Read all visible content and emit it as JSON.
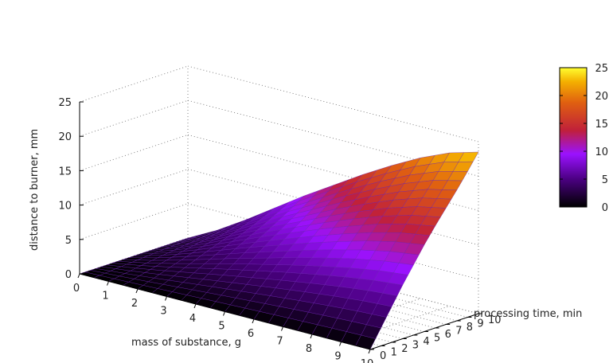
{
  "chart_data": {
    "type": "surface3d",
    "xlabel": "mass of substance, g",
    "ylabel": "processing time, min",
    "zlabel": "distance to burner, mm",
    "x_ticks": [
      0,
      1,
      2,
      3,
      4,
      5,
      6,
      7,
      8,
      9,
      10
    ],
    "y_ticks": [
      0,
      1,
      2,
      3,
      4,
      5,
      6,
      7,
      8,
      9,
      10
    ],
    "z_ticks": [
      0,
      5,
      10,
      15,
      20,
      25
    ],
    "colorbar_ticks": [
      0,
      5,
      10,
      15,
      20,
      25
    ],
    "xlim": [
      0,
      10
    ],
    "ylim": [
      0,
      10
    ],
    "zlim": [
      0,
      25
    ],
    "colormap": "gnuplot (black-purple-red-orange-yellow)",
    "grid": true,
    "surface_samples": {
      "x": [
        0,
        1,
        2,
        3,
        4,
        5,
        6,
        7,
        8,
        9,
        10
      ],
      "z_at_t_max": [
        0,
        2.2,
        4.8,
        7.6,
        10.4,
        13.0,
        15.6,
        18.0,
        20.2,
        22.0,
        23.2
      ],
      "z_edge_x_max_vs_t": [
        0,
        2.6,
        5.2,
        7.8,
        10.2,
        12.6,
        14.8,
        16.9,
        19.0,
        21.2,
        23.5
      ]
    }
  }
}
